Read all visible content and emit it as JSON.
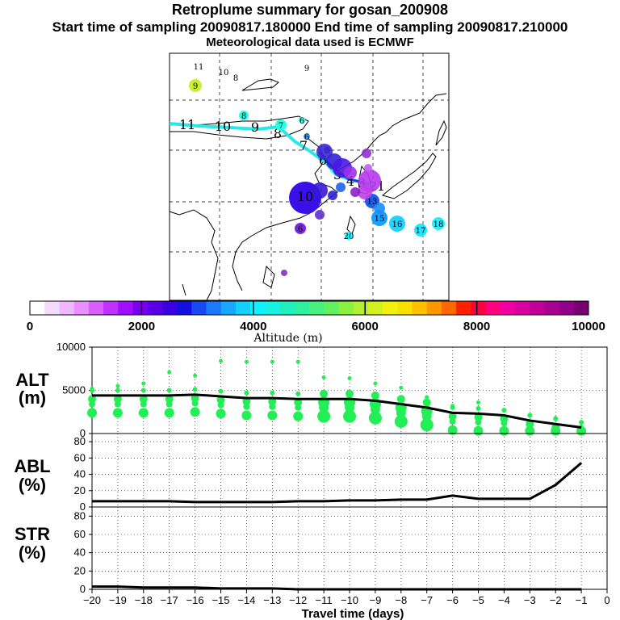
{
  "header": {
    "title": "Retroplume summary for gosan_200908",
    "line1": "Start time of sampling 20090817.180000     End time of sampling 20090817.210000",
    "line2": "Meteorological data used is ECMWF"
  },
  "colorbar": {
    "label": "Altitude (m)",
    "ticks": [
      "0",
      "2000",
      "4000",
      "6000",
      "8000",
      "10000"
    ]
  },
  "map": {
    "track_labels": [
      "11",
      "10",
      "9",
      "8",
      "7",
      "6",
      "5",
      "4",
      "3",
      "2",
      "1"
    ],
    "clusters": [
      {
        "label": "11",
        "color": "#ffffff",
        "text": "#000000",
        "r": 0
      },
      {
        "label": "10",
        "color": "#ffffff",
        "text": "#000000",
        "r": 0
      },
      {
        "label": "9",
        "color": "#c8f032",
        "text": "#000000",
        "r": 8
      },
      {
        "label": "8",
        "color": "#ffffff",
        "text": "#000000",
        "r": 0
      },
      {
        "label": "9",
        "color": "#ffffff",
        "text": "#000000",
        "r": 0
      },
      {
        "label": "8",
        "color": "#28ffe6",
        "text": "#000000",
        "r": 6
      },
      {
        "label": "7",
        "color": "#28ffe6",
        "text": "#000000",
        "r": 7
      },
      {
        "label": "6",
        "color": "#28ffe6",
        "text": "#000000",
        "r": 4
      },
      {
        "label": "6",
        "color": "#3c9cff",
        "text": "#000000",
        "r": 4
      },
      {
        "label": "10",
        "color": "#3a10e8",
        "text": "#000000",
        "r": 20
      },
      {
        "label": "13",
        "color": "#1e5cf0",
        "text": "#000000",
        "r": 9
      },
      {
        "label": "15",
        "color": "#1aa0ff",
        "text": "#000000",
        "r": 10
      },
      {
        "label": "16",
        "color": "#20d4ff",
        "text": "#000000",
        "r": 10
      },
      {
        "label": "17",
        "color": "#20e6ff",
        "text": "#000000",
        "r": 8
      },
      {
        "label": "18",
        "color": "#20f0ff",
        "text": "#000000",
        "r": 8
      },
      {
        "label": "20",
        "color": "#20f0ff",
        "text": "#000000",
        "r": 5
      },
      {
        "label": "6",
        "color": "#7a28e0",
        "text": "#000000",
        "r": 7
      },
      {
        "label": "5",
        "color": "#8c28c8",
        "text": "#000000",
        "r": 4
      }
    ]
  },
  "panels": {
    "alt": {
      "label_top": "ALT",
      "label_bottom": "(m)",
      "ticks": [
        "10000",
        "5000",
        "0"
      ]
    },
    "abl": {
      "label_top": "ABL",
      "label_bottom": "(%)",
      "ticks": [
        "80",
        "60",
        "40",
        "20",
        "0"
      ]
    },
    "str": {
      "label_top": "STR",
      "label_bottom": "(%)",
      "ticks": [
        "80",
        "60",
        "40",
        "20",
        "0"
      ]
    }
  },
  "xaxis": {
    "label": "Travel time (days)",
    "ticks": [
      "−20",
      "−19",
      "−18",
      "−17",
      "−16",
      "−15",
      "−14",
      "−13",
      "−12",
      "−11",
      "−10",
      "−9",
      "−8",
      "−7",
      "−6",
      "−5",
      "−4",
      "−3",
      "−2",
      "−1",
      "0"
    ]
  },
  "chart_data": [
    {
      "type": "line",
      "title": "ALT (m)",
      "xlabel": "Travel time (days)",
      "ylabel": "ALT (m)",
      "xlim": [
        -20,
        0
      ],
      "ylim": [
        0,
        10000
      ],
      "x": [
        -20,
        -19,
        -18,
        -17,
        -16,
        -15,
        -14,
        -13,
        -12,
        -11,
        -10,
        -9,
        -8,
        -7,
        -6,
        -5,
        -4,
        -3,
        -2,
        -1
      ],
      "series": [
        {
          "name": "mean altitude",
          "values": [
            4400,
            4400,
            4400,
            4400,
            4500,
            4300,
            4100,
            4100,
            4000,
            4000,
            4000,
            3800,
            3400,
            3000,
            2400,
            2300,
            2100,
            1500,
            1100,
            700
          ]
        },
        {
          "name": "cluster altitudes",
          "values": [
            5200,
            5500,
            5800,
            7100,
            6700,
            8400,
            8300,
            8300,
            8300,
            6500,
            6400,
            5800,
            5300,
            4200,
            3200,
            3600,
            2700,
            2100,
            1800,
            800
          ]
        }
      ]
    },
    {
      "type": "line",
      "title": "ABL (%)",
      "xlabel": "Travel time (days)",
      "ylabel": "ABL (%)",
      "xlim": [
        -20,
        0
      ],
      "ylim": [
        0,
        90
      ],
      "x": [
        -20,
        -19,
        -18,
        -17,
        -16,
        -15,
        -14,
        -13,
        -12,
        -11,
        -10,
        -9,
        -8,
        -7,
        -6,
        -5,
        -4,
        -3,
        -2,
        -1
      ],
      "series": [
        {
          "name": "ABL",
          "values": [
            7,
            7,
            7,
            7,
            6,
            6,
            6,
            6,
            7,
            7,
            8,
            8,
            9,
            9,
            14,
            10,
            10,
            10,
            27,
            54
          ]
        }
      ]
    },
    {
      "type": "line",
      "title": "STR (%)",
      "xlabel": "Travel time (days)",
      "ylabel": "STR (%)",
      "xlim": [
        -20,
        0
      ],
      "ylim": [
        0,
        90
      ],
      "x": [
        -20,
        -19,
        -18,
        -17,
        -16,
        -15,
        -14,
        -13,
        -12,
        -11,
        -10,
        -9,
        -8,
        -7,
        -6,
        -5,
        -4,
        -3,
        -2,
        -1
      ],
      "series": [
        {
          "name": "STR",
          "values": [
            3,
            3,
            2,
            2,
            2,
            1,
            1,
            1,
            0,
            0,
            0,
            0,
            0,
            0,
            0,
            0,
            0,
            0,
            0,
            0
          ]
        }
      ]
    }
  ]
}
